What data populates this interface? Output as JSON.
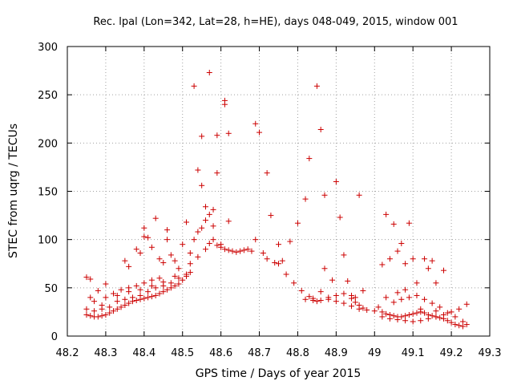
{
  "chart_data": {
    "type": "scatter",
    "title": "Rec. lpal (Lon=342, Lat=28, h=HE), days 048-049, 2015, window 001",
    "xlabel": "GPS time / Days of year 2015",
    "ylabel": "STEC from uqrg / TECUs",
    "xlim": [
      48.2,
      49.3
    ],
    "ylim": [
      0,
      300
    ],
    "xticks": [
      "48.2",
      "48.3",
      "48.4",
      "48.5",
      "48.6",
      "48.7",
      "48.8",
      "48.9",
      "49",
      "49.1",
      "49.2",
      "49.3"
    ],
    "yticks": [
      "0",
      "50",
      "100",
      "150",
      "200",
      "250",
      "300"
    ],
    "grid": true,
    "marker": "plus",
    "color": "#cc0000",
    "series": [
      {
        "name": "STEC",
        "points": [
          [
            48.25,
            61
          ],
          [
            48.26,
            59
          ],
          [
            48.28,
            47
          ],
          [
            48.3,
            54
          ],
          [
            48.26,
            40
          ],
          [
            48.27,
            36
          ],
          [
            48.29,
            32
          ],
          [
            48.25,
            22
          ],
          [
            48.26,
            21
          ],
          [
            48.27,
            20
          ],
          [
            48.28,
            20
          ],
          [
            48.29,
            21
          ],
          [
            48.3,
            22
          ],
          [
            48.31,
            24
          ],
          [
            48.32,
            26
          ],
          [
            48.33,
            28
          ],
          [
            48.34,
            30
          ],
          [
            48.35,
            32
          ],
          [
            48.36,
            34
          ],
          [
            48.37,
            36
          ],
          [
            48.38,
            37
          ],
          [
            48.39,
            38
          ],
          [
            48.4,
            39
          ],
          [
            48.41,
            40
          ],
          [
            48.42,
            41
          ],
          [
            48.43,
            42
          ],
          [
            48.44,
            44
          ],
          [
            48.45,
            46
          ],
          [
            48.46,
            48
          ],
          [
            48.47,
            50
          ],
          [
            48.48,
            52
          ],
          [
            48.49,
            54
          ],
          [
            48.5,
            58
          ],
          [
            48.51,
            62
          ],
          [
            48.52,
            66
          ],
          [
            48.25,
            28
          ],
          [
            48.27,
            26
          ],
          [
            48.29,
            28
          ],
          [
            48.31,
            30
          ],
          [
            48.33,
            36
          ],
          [
            48.35,
            38
          ],
          [
            48.37,
            40
          ],
          [
            48.39,
            42
          ],
          [
            48.41,
            46
          ],
          [
            48.43,
            50
          ],
          [
            48.45,
            52
          ],
          [
            48.47,
            55
          ],
          [
            48.49,
            60
          ],
          [
            48.51,
            64
          ],
          [
            48.32,
            44
          ],
          [
            48.34,
            48
          ],
          [
            48.36,
            50
          ],
          [
            48.38,
            52
          ],
          [
            48.4,
            55
          ],
          [
            48.42,
            58
          ],
          [
            48.44,
            60
          ],
          [
            48.3,
            40
          ],
          [
            48.33,
            42
          ],
          [
            48.36,
            46
          ],
          [
            48.39,
            48
          ],
          [
            48.42,
            52
          ],
          [
            48.45,
            56
          ],
          [
            48.48,
            62
          ],
          [
            48.35,
            78
          ],
          [
            48.36,
            72
          ],
          [
            48.38,
            90
          ],
          [
            48.39,
            86
          ],
          [
            48.4,
            112
          ],
          [
            48.4,
            103
          ],
          [
            48.41,
            102
          ],
          [
            48.42,
            92
          ],
          [
            48.43,
            122
          ],
          [
            48.44,
            80
          ],
          [
            48.45,
            76
          ],
          [
            48.46,
            110
          ],
          [
            48.46,
            100
          ],
          [
            48.47,
            84
          ],
          [
            48.48,
            78
          ],
          [
            48.49,
            70
          ],
          [
            48.5,
            95
          ],
          [
            48.51,
            118
          ],
          [
            48.52,
            75
          ],
          [
            48.53,
            259
          ],
          [
            48.54,
            172
          ],
          [
            48.55,
            207
          ],
          [
            48.55,
            156
          ],
          [
            48.56,
            134
          ],
          [
            48.56,
            120
          ],
          [
            48.57,
            273
          ],
          [
            48.57,
            126
          ],
          [
            48.58,
            131
          ],
          [
            48.58,
            114
          ],
          [
            48.59,
            208
          ],
          [
            48.59,
            169
          ],
          [
            48.6,
            95
          ],
          [
            48.61,
            244
          ],
          [
            48.61,
            240
          ],
          [
            48.62,
            210
          ],
          [
            48.62,
            119
          ],
          [
            48.54,
            108
          ],
          [
            48.55,
            112
          ],
          [
            48.53,
            100
          ],
          [
            48.52,
            86
          ],
          [
            48.54,
            82
          ],
          [
            48.56,
            90
          ],
          [
            48.57,
            96
          ],
          [
            48.58,
            100
          ],
          [
            48.59,
            94
          ],
          [
            48.6,
            92
          ],
          [
            48.61,
            90
          ],
          [
            48.62,
            89
          ],
          [
            48.63,
            88
          ],
          [
            48.64,
            87
          ],
          [
            48.65,
            88
          ],
          [
            48.66,
            89
          ],
          [
            48.67,
            90
          ],
          [
            48.68,
            88
          ],
          [
            48.69,
            100
          ],
          [
            48.69,
            220
          ],
          [
            48.7,
            211
          ],
          [
            48.71,
            86
          ],
          [
            48.72,
            169
          ],
          [
            48.72,
            80
          ],
          [
            48.73,
            125
          ],
          [
            48.74,
            76
          ],
          [
            48.75,
            95
          ],
          [
            48.75,
            75
          ],
          [
            48.76,
            78
          ],
          [
            48.77,
            64
          ],
          [
            48.78,
            98
          ],
          [
            48.79,
            55
          ],
          [
            48.8,
            117
          ],
          [
            48.81,
            47
          ],
          [
            48.82,
            142
          ],
          [
            48.83,
            184
          ],
          [
            48.83,
            41
          ],
          [
            48.84,
            39
          ],
          [
            48.85,
            259
          ],
          [
            48.86,
            214
          ],
          [
            48.86,
            46
          ],
          [
            48.87,
            146
          ],
          [
            48.87,
            70
          ],
          [
            48.88,
            38
          ],
          [
            48.89,
            58
          ],
          [
            48.9,
            160
          ],
          [
            48.91,
            123
          ],
          [
            48.92,
            84
          ],
          [
            48.93,
            57
          ],
          [
            48.94,
            39
          ],
          [
            48.95,
            40
          ],
          [
            48.96,
            146
          ],
          [
            48.97,
            47
          ],
          [
            48.85,
            36
          ],
          [
            48.86,
            37
          ],
          [
            48.88,
            40
          ],
          [
            48.9,
            42
          ],
          [
            48.92,
            44
          ],
          [
            48.94,
            42
          ],
          [
            48.95,
            35
          ],
          [
            48.96,
            32
          ],
          [
            48.97,
            29
          ],
          [
            48.98,
            27
          ],
          [
            48.9,
            36
          ],
          [
            48.92,
            34
          ],
          [
            48.94,
            31
          ],
          [
            48.96,
            28
          ],
          [
            48.82,
            38
          ],
          [
            48.84,
            37
          ],
          [
            49.02,
            74
          ],
          [
            49.03,
            126
          ],
          [
            49.04,
            80
          ],
          [
            49.05,
            116
          ],
          [
            49.06,
            88
          ],
          [
            49.07,
            96
          ],
          [
            49.08,
            75
          ],
          [
            49.09,
            117
          ],
          [
            49.1,
            80
          ],
          [
            49.11,
            55
          ],
          [
            49.13,
            80
          ],
          [
            49.14,
            70
          ],
          [
            49.15,
            78
          ],
          [
            49.16,
            55
          ],
          [
            49.18,
            68
          ],
          [
            49.01,
            30
          ],
          [
            49.02,
            25
          ],
          [
            49.03,
            23
          ],
          [
            49.04,
            22
          ],
          [
            49.05,
            21
          ],
          [
            49.06,
            20
          ],
          [
            49.07,
            20
          ],
          [
            49.08,
            21
          ],
          [
            49.09,
            22
          ],
          [
            49.1,
            23
          ],
          [
            49.11,
            24
          ],
          [
            49.12,
            25
          ],
          [
            49.13,
            24
          ],
          [
            49.14,
            22
          ],
          [
            49.15,
            21
          ],
          [
            49.16,
            20
          ],
          [
            49.17,
            19
          ],
          [
            49.18,
            18
          ],
          [
            49.19,
            16
          ],
          [
            49.2,
            14
          ],
          [
            49.21,
            12
          ],
          [
            49.22,
            11
          ],
          [
            49.23,
            10
          ],
          [
            49.24,
            12
          ],
          [
            49.0,
            26
          ],
          [
            49.02,
            20
          ],
          [
            49.04,
            18
          ],
          [
            49.06,
            17
          ],
          [
            49.08,
            16
          ],
          [
            49.1,
            15
          ],
          [
            49.12,
            16
          ],
          [
            49.14,
            18
          ],
          [
            49.16,
            20
          ],
          [
            49.18,
            22
          ],
          [
            49.2,
            25
          ],
          [
            49.22,
            28
          ],
          [
            49.24,
            33
          ],
          [
            49.05,
            35
          ],
          [
            49.07,
            38
          ],
          [
            49.09,
            40
          ],
          [
            49.11,
            42
          ],
          [
            49.13,
            38
          ],
          [
            49.15,
            34
          ],
          [
            49.17,
            30
          ],
          [
            49.03,
            40
          ],
          [
            49.06,
            45
          ],
          [
            49.08,
            48
          ],
          [
            49.12,
            28
          ],
          [
            49.16,
            26
          ],
          [
            49.19,
            24
          ],
          [
            49.21,
            20
          ],
          [
            49.23,
            15
          ]
        ]
      }
    ]
  }
}
